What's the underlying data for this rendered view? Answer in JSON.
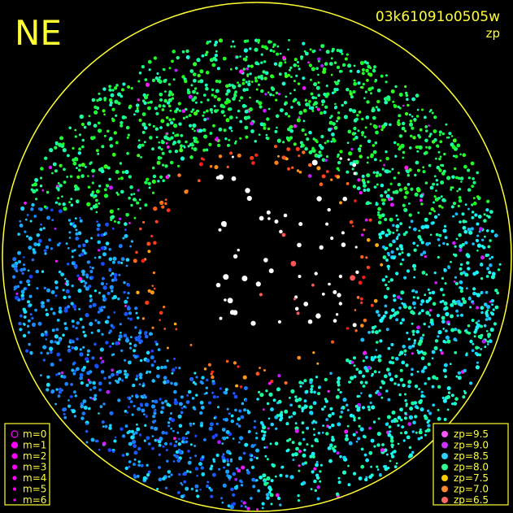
{
  "corner_label": "NE",
  "image_id": "03k61091o0505w",
  "mode": "zp",
  "magnitude_legend": [
    "m=0",
    "m=1",
    "m=2",
    "m=3",
    "m=4",
    "m=5",
    "m=6"
  ],
  "zp_legend": [
    "zp=9.5",
    "zp=9.0",
    "zp=8.5",
    "zp=8.0",
    "zp=7.5",
    "zp=7.0",
    "zp=6.5"
  ]
}
